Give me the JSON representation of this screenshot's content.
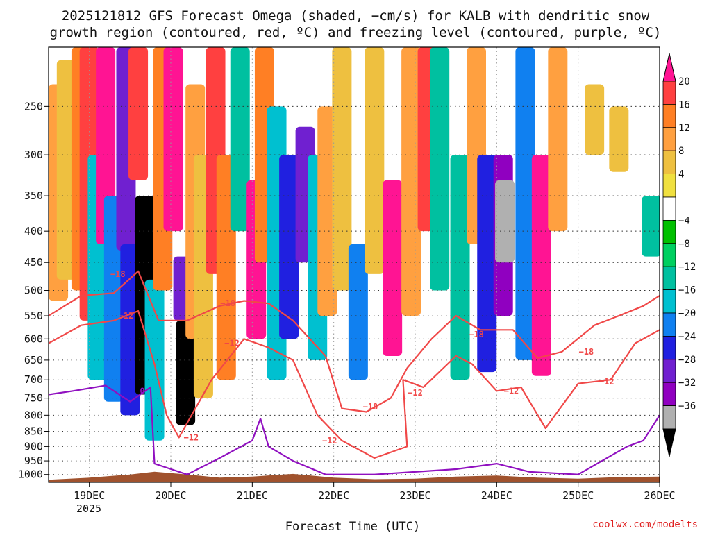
{
  "chart_data": {
    "type": "heatmap",
    "title_line1": "2025121812 GFS Forecast Omega (shaded, −cm/s) for KALB with dendritic snow",
    "title_line2": "growth region (contoured, red, ºC) and freezing level (contoured, purple, ºC)",
    "xlabel": "Forecast Time (UTC)",
    "ylabel": "",
    "credit": "coolwx.com/modelts",
    "x_ticks": [
      "19DEC",
      "20DEC",
      "21DEC",
      "22DEC",
      "23DEC",
      "24DEC",
      "25DEC",
      "26DEC"
    ],
    "x_year_label": "2025",
    "x_range_days": [
      18.5,
      26.0
    ],
    "y_ticks": [
      "250",
      "300",
      "350",
      "400",
      "450",
      "500",
      "550",
      "600",
      "650",
      "700",
      "750",
      "800",
      "850",
      "900",
      "950",
      "1000"
    ],
    "y_range_hpa": [
      1030,
      200
    ],
    "colorbar": {
      "labels": [
        "20",
        "16",
        "12",
        "8",
        "4",
        "−4",
        "−8",
        "−12",
        "−16",
        "−20",
        "−24",
        "−28",
        "−32",
        "−36"
      ],
      "colors": [
        "#ff1493",
        "#ff4040",
        "#ff7f24",
        "#ffa040",
        "#eec040",
        "#f0e040",
        "#ffffff",
        "#00c000",
        "#00d060",
        "#00c0a0",
        "#00c0d0",
        "#1080f0",
        "#2020e0",
        "#7020d0",
        "#9000c0",
        "#b0b0b0",
        "#000000"
      ]
    },
    "omega_cells": [
      {
        "t": 18.62,
        "p1": 230,
        "p2": 520,
        "v": 8
      },
      {
        "t": 18.72,
        "p1": 210,
        "p2": 480,
        "v": 4
      },
      {
        "t": 18.9,
        "p1": 200,
        "p2": 500,
        "v": 12
      },
      {
        "t": 19.0,
        "p1": 200,
        "p2": 560,
        "v": 16
      },
      {
        "t": 19.1,
        "p1": 300,
        "p2": 700,
        "v": -12
      },
      {
        "t": 19.2,
        "p1": 200,
        "p2": 420,
        "v": 20
      },
      {
        "t": 19.3,
        "p1": 350,
        "p2": 760,
        "v": -16
      },
      {
        "t": 19.45,
        "p1": 200,
        "p2": 430,
        "v": -24
      },
      {
        "t": 19.5,
        "p1": 420,
        "p2": 800,
        "v": -20
      },
      {
        "t": 19.6,
        "p1": 200,
        "p2": 330,
        "v": 16
      },
      {
        "t": 19.68,
        "p1": 350,
        "p2": 740,
        "v": -36
      },
      {
        "t": 19.8,
        "p1": 480,
        "p2": 880,
        "v": -12
      },
      {
        "t": 19.9,
        "p1": 200,
        "p2": 500,
        "v": 12
      },
      {
        "t": 20.03,
        "p1": 200,
        "p2": 400,
        "v": 20
      },
      {
        "t": 20.15,
        "p1": 440,
        "p2": 560,
        "v": -24
      },
      {
        "t": 20.18,
        "p1": 560,
        "p2": 830,
        "v": -36
      },
      {
        "t": 20.3,
        "p1": 230,
        "p2": 600,
        "v": 8
      },
      {
        "t": 20.4,
        "p1": 300,
        "p2": 750,
        "v": 4
      },
      {
        "t": 20.55,
        "p1": 200,
        "p2": 470,
        "v": 16
      },
      {
        "t": 20.68,
        "p1": 300,
        "p2": 700,
        "v": 12
      },
      {
        "t": 20.85,
        "p1": 200,
        "p2": 400,
        "v": -8
      },
      {
        "t": 21.05,
        "p1": 330,
        "p2": 600,
        "v": 20
      },
      {
        "t": 21.15,
        "p1": 200,
        "p2": 450,
        "v": 12
      },
      {
        "t": 21.3,
        "p1": 250,
        "p2": 700,
        "v": -12
      },
      {
        "t": 21.45,
        "p1": 300,
        "p2": 600,
        "v": -20
      },
      {
        "t": 21.65,
        "p1": 270,
        "p2": 450,
        "v": -24
      },
      {
        "t": 21.8,
        "p1": 300,
        "p2": 650,
        "v": -12
      },
      {
        "t": 21.92,
        "p1": 250,
        "p2": 550,
        "v": 8
      },
      {
        "t": 22.1,
        "p1": 200,
        "p2": 500,
        "v": 4
      },
      {
        "t": 22.3,
        "p1": 420,
        "p2": 700,
        "v": -16
      },
      {
        "t": 22.5,
        "p1": 200,
        "p2": 470,
        "v": 4
      },
      {
        "t": 22.72,
        "p1": 330,
        "p2": 640,
        "v": 20
      },
      {
        "t": 22.95,
        "p1": 200,
        "p2": 550,
        "v": 8
      },
      {
        "t": 23.15,
        "p1": 200,
        "p2": 400,
        "v": 16
      },
      {
        "t": 23.3,
        "p1": 200,
        "p2": 500,
        "v": -8
      },
      {
        "t": 23.55,
        "p1": 300,
        "p2": 700,
        "v": -8
      },
      {
        "t": 23.75,
        "p1": 200,
        "p2": 420,
        "v": 8
      },
      {
        "t": 23.88,
        "p1": 300,
        "p2": 680,
        "v": -20
      },
      {
        "t": 24.08,
        "p1": 300,
        "p2": 550,
        "v": -28
      },
      {
        "t": 24.1,
        "p1": 330,
        "p2": 450,
        "v": -32
      },
      {
        "t": 24.35,
        "p1": 200,
        "p2": 650,
        "v": -16
      },
      {
        "t": 24.55,
        "p1": 300,
        "p2": 690,
        "v": 20
      },
      {
        "t": 24.75,
        "p1": 200,
        "p2": 400,
        "v": 8
      },
      {
        "t": 25.2,
        "p1": 230,
        "p2": 300,
        "v": 4
      },
      {
        "t": 25.5,
        "p1": 250,
        "p2": 320,
        "v": 4
      },
      {
        "t": 25.9,
        "p1": 350,
        "p2": 440,
        "v": -8
      }
    ],
    "series": [
      {
        "name": "-18 C",
        "color": "#f04848",
        "points": [
          [
            18.5,
            550
          ],
          [
            18.9,
            510
          ],
          [
            19.3,
            505
          ],
          [
            19.6,
            465
          ],
          [
            19.85,
            560
          ],
          [
            20.2,
            560
          ],
          [
            20.6,
            530
          ],
          [
            20.9,
            520
          ],
          [
            21.2,
            525
          ],
          [
            21.5,
            560
          ],
          [
            21.9,
            640
          ],
          [
            22.1,
            780
          ],
          [
            22.4,
            790
          ],
          [
            22.7,
            750
          ],
          [
            22.9,
            670
          ],
          [
            23.2,
            600
          ],
          [
            23.5,
            550
          ],
          [
            23.8,
            580
          ],
          [
            24.2,
            580
          ],
          [
            24.5,
            645
          ],
          [
            24.8,
            630
          ],
          [
            25.2,
            570
          ],
          [
            25.5,
            550
          ],
          [
            25.8,
            530
          ],
          [
            26.0,
            510
          ]
        ],
        "labels": [
          {
            "t": 19.35,
            "p": 470,
            "text": "−18"
          },
          {
            "t": 20.7,
            "p": 525,
            "text": "−18"
          },
          {
            "t": 22.45,
            "p": 775,
            "text": "−18"
          },
          {
            "t": 23.75,
            "p": 590,
            "text": "−18"
          },
          {
            "t": 25.1,
            "p": 630,
            "text": "−18"
          }
        ]
      },
      {
        "name": "-12 C",
        "color": "#f04848",
        "points": [
          [
            18.5,
            610
          ],
          [
            18.9,
            570
          ],
          [
            19.3,
            560
          ],
          [
            19.6,
            540
          ],
          [
            19.8,
            660
          ],
          [
            19.95,
            800
          ],
          [
            20.1,
            870
          ],
          [
            20.5,
            700
          ],
          [
            20.9,
            600
          ],
          [
            21.2,
            620
          ],
          [
            21.5,
            650
          ],
          [
            21.8,
            800
          ],
          [
            22.1,
            880
          ],
          [
            22.5,
            940
          ],
          [
            22.9,
            900
          ],
          [
            22.85,
            700
          ],
          [
            23.1,
            720
          ],
          [
            23.5,
            640
          ],
          [
            23.7,
            660
          ],
          [
            24.0,
            730
          ],
          [
            24.3,
            720
          ],
          [
            24.6,
            840
          ],
          [
            25.0,
            710
          ],
          [
            25.4,
            700
          ],
          [
            25.7,
            610
          ],
          [
            26.0,
            580
          ]
        ],
        "labels": [
          {
            "t": 19.45,
            "p": 550,
            "text": "−12"
          },
          {
            "t": 20.25,
            "p": 870,
            "text": "−12"
          },
          {
            "t": 20.75,
            "p": 610,
            "text": "−12"
          },
          {
            "t": 21.95,
            "p": 880,
            "text": "−12"
          },
          {
            "t": 23.0,
            "p": 735,
            "text": "−12"
          },
          {
            "t": 24.18,
            "p": 730,
            "text": "−12"
          },
          {
            "t": 25.35,
            "p": 705,
            "text": "−12"
          }
        ]
      },
      {
        "name": "0 C",
        "color": "#9010c0",
        "points": [
          [
            18.5,
            740
          ],
          [
            18.8,
            730
          ],
          [
            19.2,
            715
          ],
          [
            19.5,
            760
          ],
          [
            19.75,
            720
          ],
          [
            19.8,
            960
          ],
          [
            20.2,
            1000
          ],
          [
            20.6,
            940
          ],
          [
            21.0,
            880
          ],
          [
            21.1,
            810
          ],
          [
            21.2,
            900
          ],
          [
            21.5,
            950
          ],
          [
            21.9,
            1000
          ],
          [
            22.5,
            1000
          ],
          [
            23.5,
            980
          ],
          [
            24.0,
            960
          ],
          [
            24.4,
            990
          ],
          [
            25.0,
            1000
          ],
          [
            25.6,
            900
          ],
          [
            25.8,
            880
          ],
          [
            26.0,
            800
          ]
        ],
        "labels": [
          {
            "t": 19.65,
            "p": 730,
            "text": "0"
          }
        ]
      }
    ]
  }
}
